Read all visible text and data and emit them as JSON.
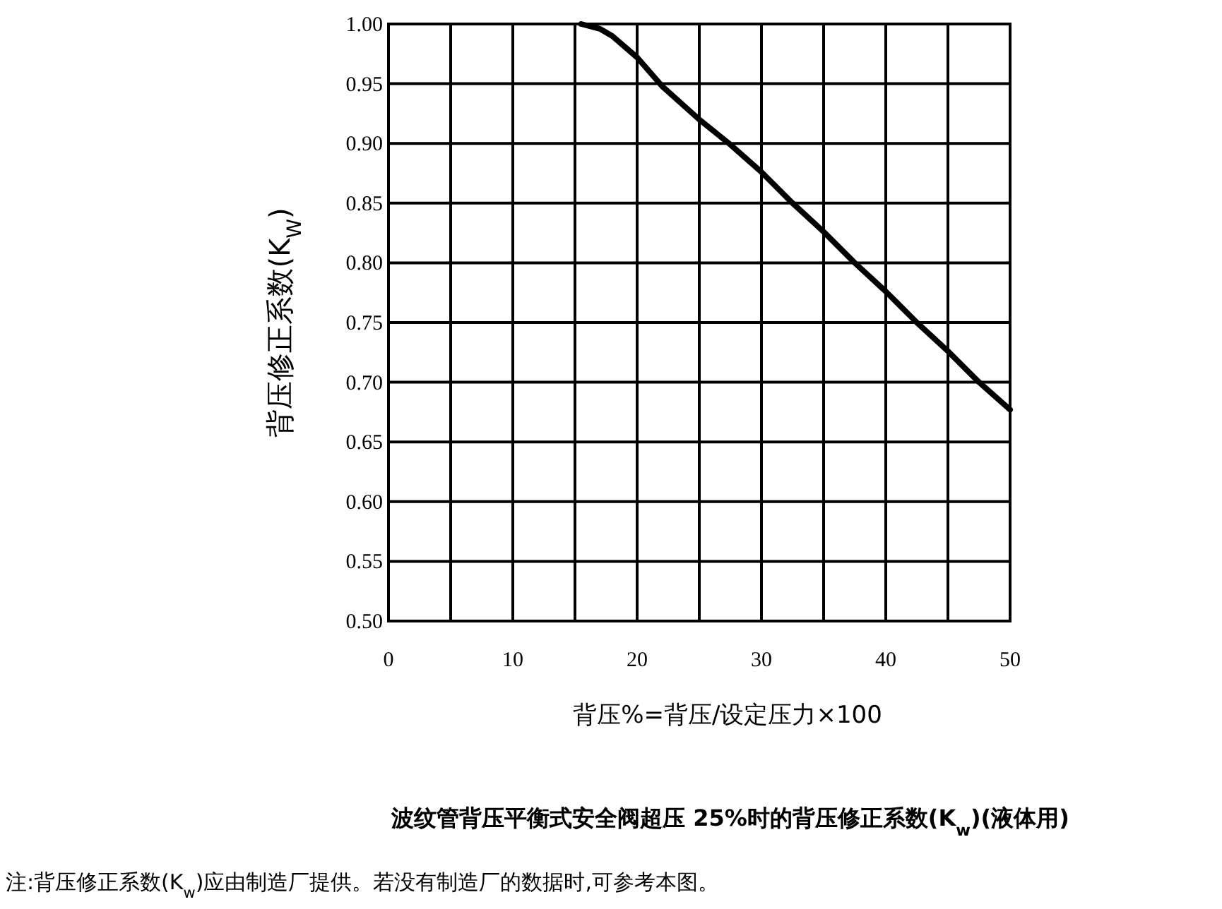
{
  "chart_data": {
    "type": "line",
    "title": "波纹管背压平衡式安全阀超压 25%时的背压修正系数(K$_{w}$)(液体用)",
    "xlabel": "背压%=背压/设定压力×100",
    "ylabel": "背压修正系数(K$_{W}$)",
    "annotations": [
      "注:背压修正系数(K$_{w}$)应由制造厂提供。若没有制造厂的数据时,可参考本图。"
    ],
    "x": [
      15.5,
      17,
      18,
      20,
      22,
      25,
      27.5,
      30,
      32.5,
      35,
      37.5,
      40,
      42.5,
      45,
      47.5,
      50
    ],
    "series": [
      {
        "color": "#000000",
        "values": [
          1.0,
          0.996,
          0.99,
          0.972,
          0.948,
          0.92,
          0.899,
          0.876,
          0.85,
          0.826,
          0.8,
          0.776,
          0.75,
          0.726,
          0.7,
          0.677
        ]
      }
    ],
    "xlim": [
      0,
      50
    ],
    "xticks": [
      0,
      {
        "value": 5,
        "label": null
      },
      10,
      {
        "value": 15,
        "label": null
      },
      20,
      {
        "value": 25,
        "label": null
      },
      30,
      {
        "value": 35,
        "label": null
      },
      40,
      {
        "value": 45,
        "label": null
      },
      50
    ],
    "ylim": [
      0.5,
      1.0
    ],
    "yticks": [
      {
        "value": 0.5,
        "label": "0.50"
      },
      {
        "value": 0.55,
        "label": "0.55"
      },
      {
        "value": 0.6,
        "label": "0.60"
      },
      {
        "value": 0.65,
        "label": "0.65"
      },
      {
        "value": 0.7,
        "label": "0.70"
      },
      {
        "value": 0.75,
        "label": "0.75"
      },
      {
        "value": 0.8,
        "label": "0.80"
      },
      {
        "value": 0.85,
        "label": "0.85"
      },
      {
        "value": 0.9,
        "label": "0.90"
      },
      {
        "value": 0.95,
        "label": "0.95"
      },
      {
        "value": 1.0,
        "label": "1.00"
      }
    ],
    "grid": true,
    "marker": "none",
    "line_style": "solid"
  }
}
